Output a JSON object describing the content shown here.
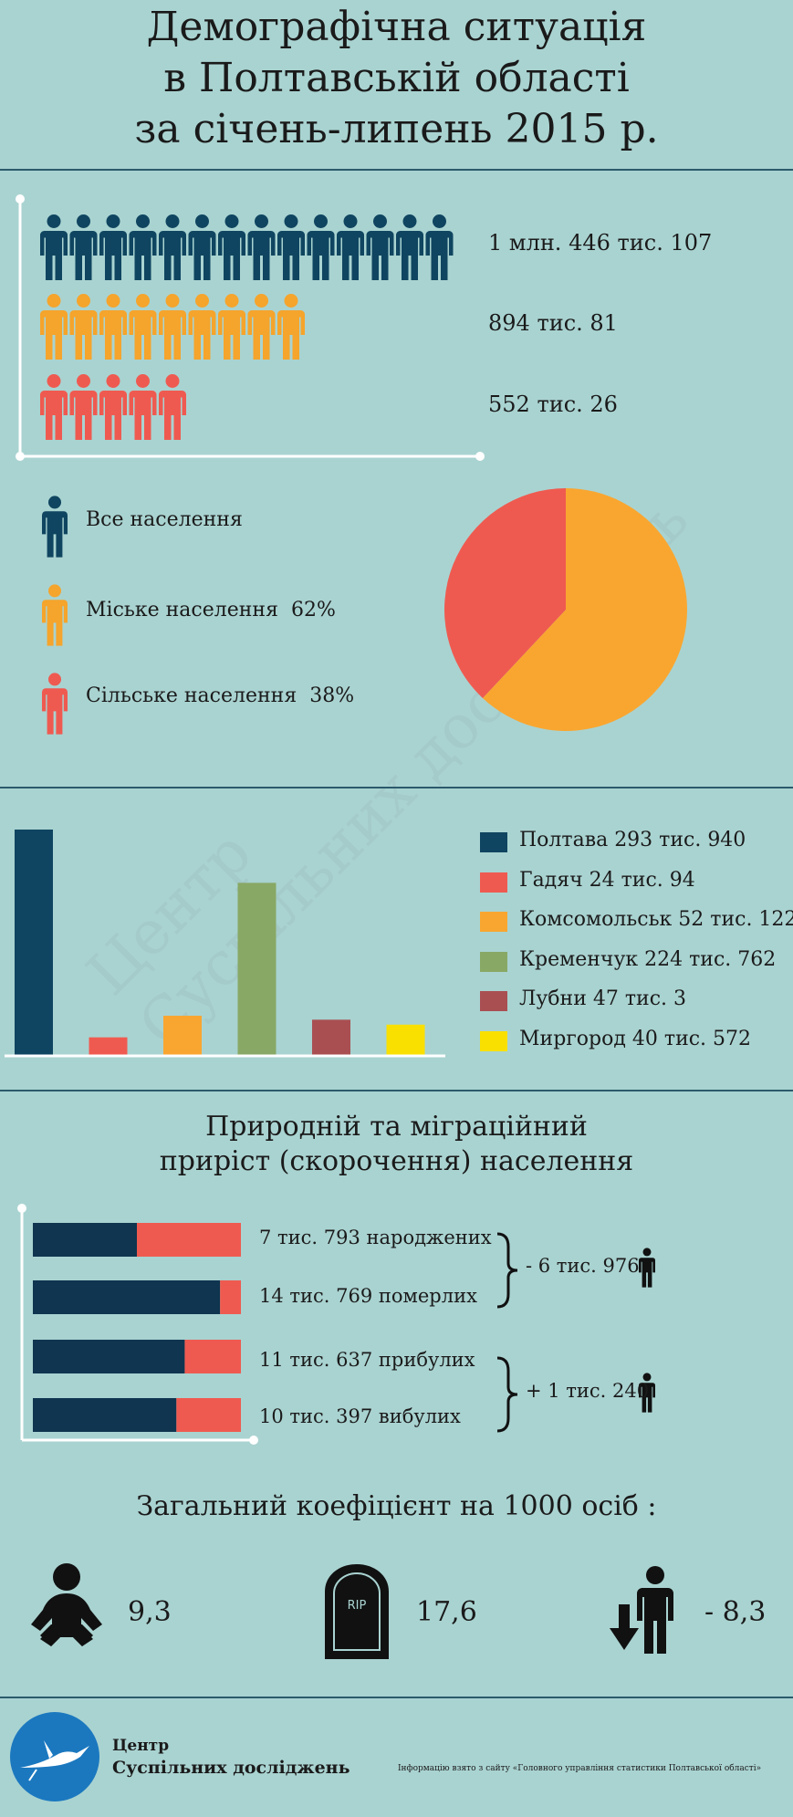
{
  "title": {
    "line1": "Демографічна ситуація",
    "line2": "в Полтавській області",
    "line3": "за січень-липень 2015 р."
  },
  "population": {
    "rows": [
      {
        "label": "1 млн. 446 тис. 107",
        "count": 14,
        "color": "#0f4560"
      },
      {
        "label": "894 тис. 81",
        "count": 9,
        "color": "#f5a42c"
      },
      {
        "label": "552 тис. 26",
        "count": 5.5,
        "color": "#ef5a50"
      }
    ],
    "legend": [
      {
        "label": "Все населення",
        "pct": "",
        "color": "#0f4560"
      },
      {
        "label": "Міське населення",
        "pct": "62%",
        "color": "#f5a42c"
      },
      {
        "label": "Сільське населення",
        "pct": "38%",
        "color": "#ef5a50"
      }
    ],
    "pie": [
      {
        "value": 62,
        "color": "#f9a630"
      },
      {
        "value": 38,
        "color": "#ef5a50"
      }
    ]
  },
  "cities": [
    {
      "label": "Полтава 293 тис. 940",
      "value": 293940,
      "color": "#0f4560"
    },
    {
      "label": "Гадяч 24 тис. 94",
      "value": 24094,
      "color": "#ef5a50"
    },
    {
      "label": "Комсомольськ 52 тис. 122",
      "value": 52122,
      "color": "#f9a630"
    },
    {
      "label": "Кременчук 224 тис. 762",
      "value": 224762,
      "color": "#88a865"
    },
    {
      "label": "Лубни 47 тис. 3",
      "value": 47003,
      "color": "#a94f52"
    },
    {
      "label": "Миргород 40 тис. 572",
      "value": 40572,
      "color": "#f9e000"
    }
  ],
  "migration": {
    "title_line1": "Природній та міграційний",
    "title_line2": "приріст (скорочення) населення",
    "rows": [
      {
        "label": "7 тис. 793 народжених",
        "dark_fraction": 0.5
      },
      {
        "label": "14 тис. 769 померлих",
        "dark_fraction": 0.9
      },
      {
        "label": "11 тис. 637 прибулих",
        "dark_fraction": 0.73
      },
      {
        "label": "10 тис. 397 вибулих",
        "dark_fraction": 0.69
      }
    ],
    "natural_result": "- 6 тис. 976",
    "migration_result": "+ 1 тис. 240"
  },
  "coefficients": {
    "title": "Загальний коефіцієнт на 1000 осіб :",
    "birth": "9,3",
    "death": "17,6",
    "change": "- 8,3",
    "rip": "RIP"
  },
  "footer": {
    "org_line1": "Центр",
    "org_line2": "Суспільних досліджень",
    "note": "Інформацію взято з сайту «Головного управління статистики Полтавської області»"
  },
  "watermark": {
    "line1": "Центр",
    "line2": "Суспільних досліджень"
  }
}
